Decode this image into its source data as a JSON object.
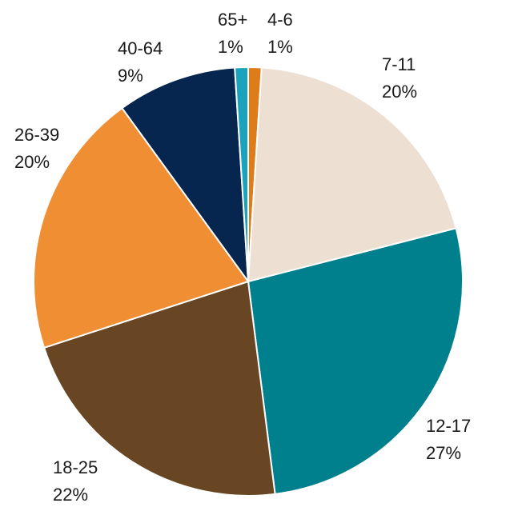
{
  "chart_data": {
    "type": "pie",
    "title": "",
    "slices": [
      {
        "label": "4-6",
        "pct_text": "1%",
        "value": 1,
        "color": "#E07B1A"
      },
      {
        "label": "7-11",
        "pct_text": "20%",
        "value": 20,
        "color": "#EDE0D3"
      },
      {
        "label": "12-17",
        "pct_text": "27%",
        "value": 27,
        "color": "#00808C"
      },
      {
        "label": "18-25",
        "pct_text": "22%",
        "value": 22,
        "color": "#684523"
      },
      {
        "label": "26-39",
        "pct_text": "20%",
        "value": 20,
        "color": "#EF8E33"
      },
      {
        "label": "40-64",
        "pct_text": "9%",
        "value": 9,
        "color": "#06264F"
      },
      {
        "label": "65+",
        "pct_text": "1%",
        "value": 1,
        "color": "#1BA3BE"
      }
    ]
  }
}
